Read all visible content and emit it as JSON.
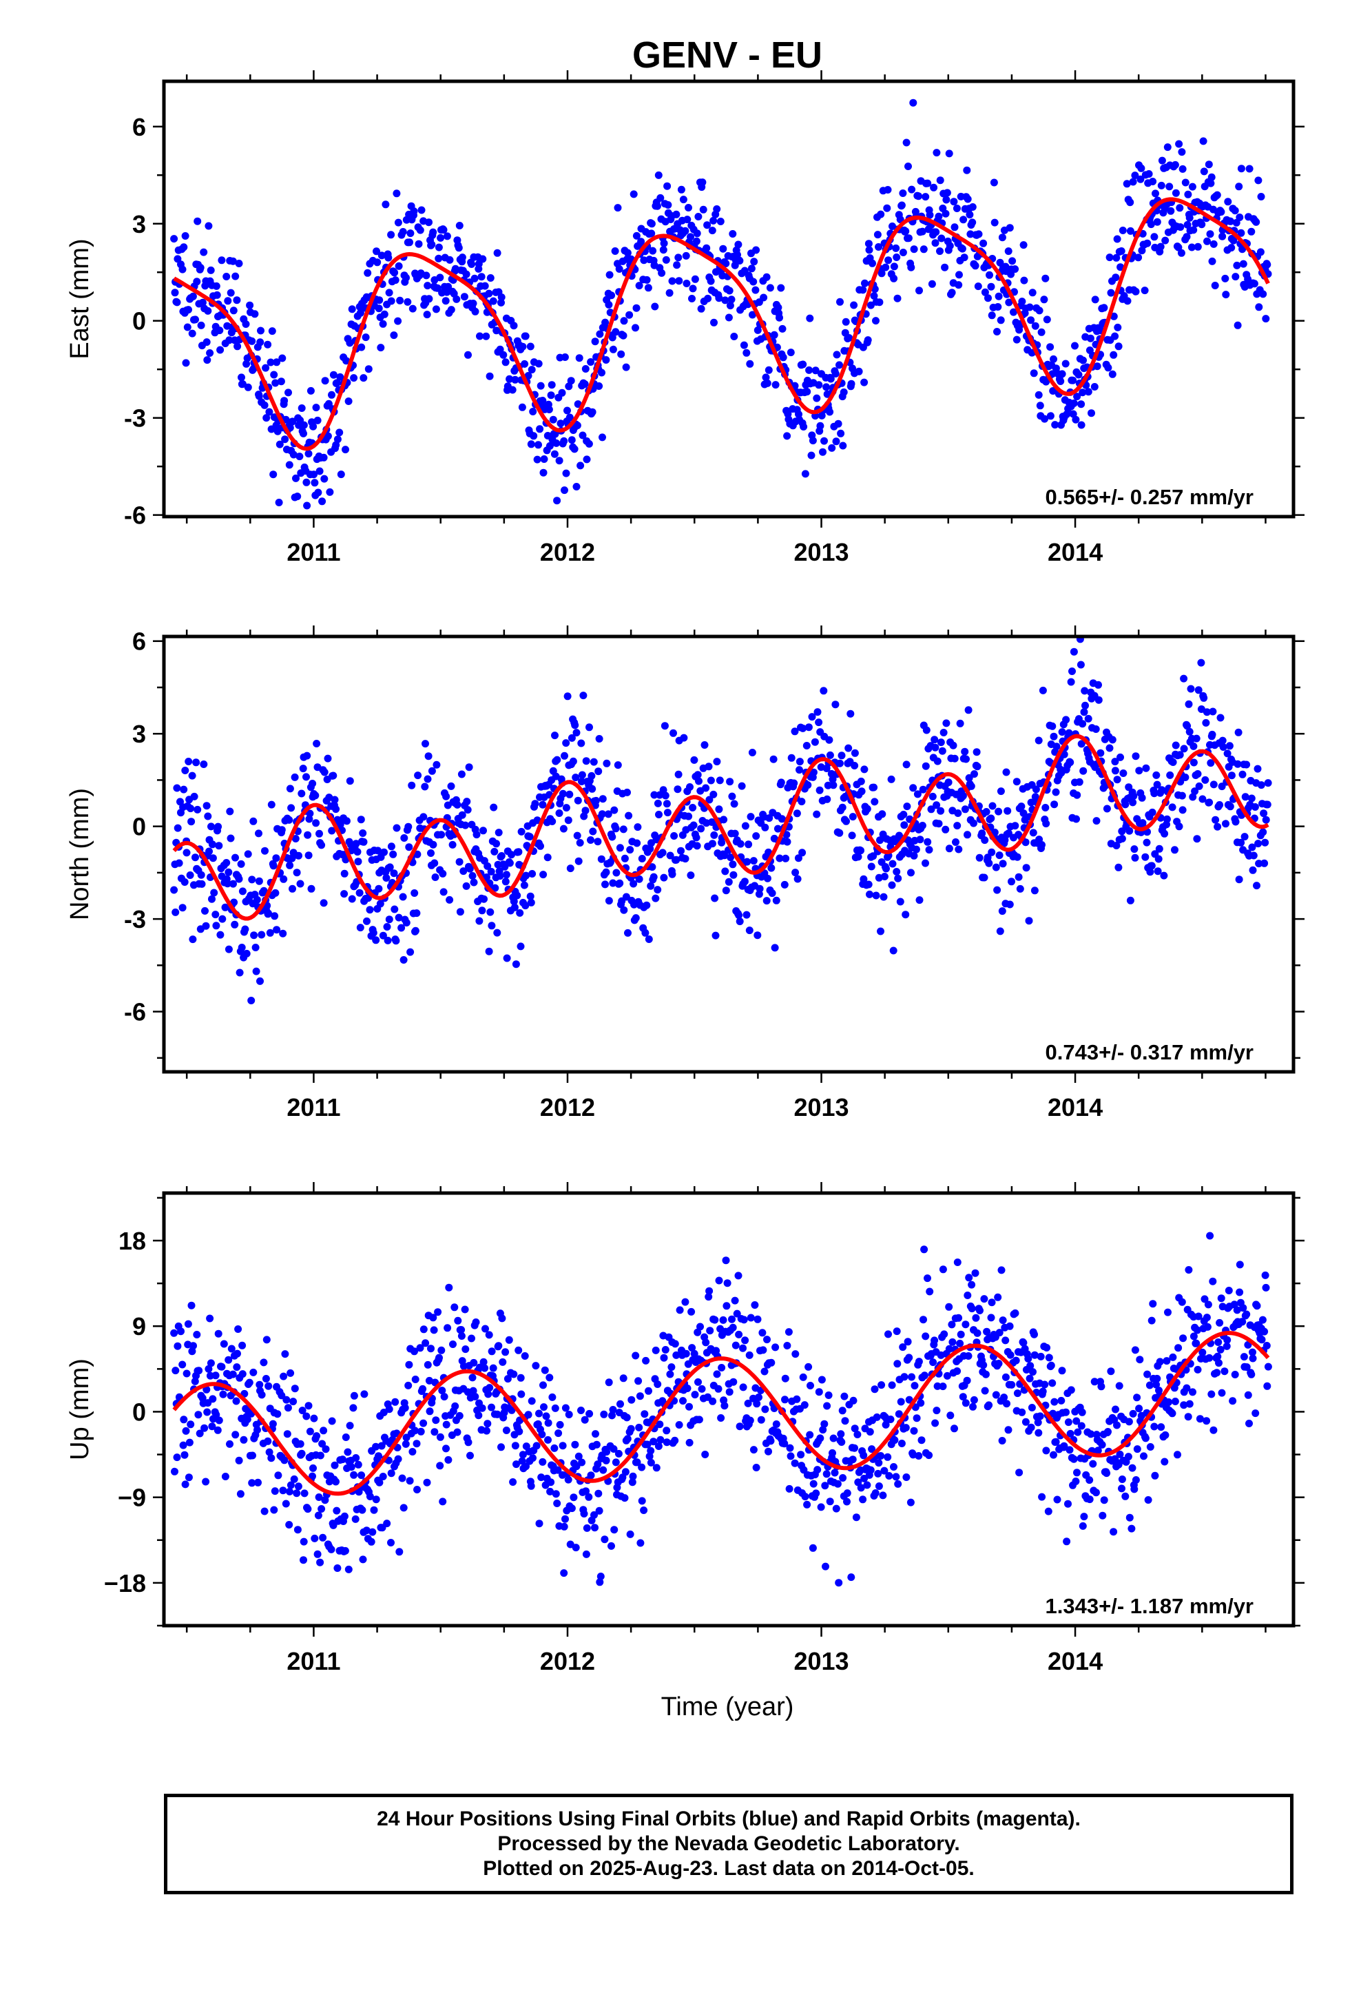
{
  "title": "GENV - EU",
  "xlabel": "Time (year)",
  "footer": {
    "line1": "24 Hour Positions Using Final Orbits (blue) and Rapid Orbits (magenta).",
    "line2": "Processed by the Nevada Geodetic Laboratory.",
    "line3": "Plotted on 2025-Aug-23. Last data on 2014-Oct-05."
  },
  "colors": {
    "points": "#0000ff",
    "fit": "#ff0000",
    "frame": "#000000"
  },
  "chart_data": [
    {
      "type": "scatter",
      "panel": "east",
      "ylabel": "East (mm)",
      "xlim": [
        2010.41,
        2014.86
      ],
      "ylim": [
        -6.05,
        7.4
      ],
      "xticks": [
        2011,
        2012,
        2013,
        2014
      ],
      "xticklabels": [
        "2011",
        "2012",
        "2013",
        "2014"
      ],
      "yticks": [
        -6,
        -3,
        0,
        3,
        6
      ],
      "yticklabels": [
        "-6",
        "-3",
        "0",
        "3",
        "6"
      ],
      "rate_text": "0.565+/- 0.257 mm/yr",
      "series": [
        {
          "role": "points",
          "x_start": 2010.45,
          "x_end": 2014.76,
          "count": 1450,
          "scatter_sd": 0.95,
          "seed": 11
        },
        {
          "role": "fit",
          "x_start": 2010.45,
          "x_end": 2014.76
        }
      ],
      "fit_model": {
        "t0": 2012.6,
        "offset": 0.3,
        "rate": 0.565,
        "annual_amp": 2.75,
        "annual_peak": 2014.45,
        "semiannual_amp": 0.65,
        "semiannual_peak": 2014.25
      }
    },
    {
      "type": "scatter",
      "panel": "north",
      "ylabel": "North (mm)",
      "xlim": [
        2010.41,
        2014.86
      ],
      "ylim": [
        -7.95,
        6.15
      ],
      "xticks": [
        2011,
        2012,
        2013,
        2014
      ],
      "xticklabels": [
        "2011",
        "2012",
        "2013",
        "2014"
      ],
      "yticks": [
        -6,
        -3,
        0,
        3,
        6
      ],
      "yticklabels": [
        "-6",
        "-3",
        "0",
        "3",
        "6"
      ],
      "rate_text": "0.743+/- 0.317 mm/yr",
      "series": [
        {
          "role": "points",
          "x_start": 2010.45,
          "x_end": 2014.76,
          "count": 1450,
          "scatter_sd": 1.2,
          "seed": 23
        },
        {
          "role": "fit",
          "x_start": 2010.45,
          "x_end": 2014.76
        }
      ],
      "fit_model": {
        "t0": 2012.6,
        "offset": 0.0,
        "rate": 0.743,
        "annual_amp": 0.45,
        "annual_peak": 2014.05,
        "semiannual_amp": 1.45,
        "semiannual_peak": 2014.0
      }
    },
    {
      "type": "scatter",
      "panel": "up",
      "ylabel": "Up (mm)",
      "xlim": [
        2010.41,
        2014.86
      ],
      "ylim": [
        -22.5,
        23.0
      ],
      "xticks": [
        2011,
        2012,
        2013,
        2014
      ],
      "xticklabels": [
        "2011",
        "2012",
        "2013",
        "2014"
      ],
      "yticks": [
        -18,
        -9,
        0,
        9,
        18
      ],
      "yticklabels": [
        "−18",
        "−9",
        "0",
        "9",
        "18"
      ],
      "rate_text": "1.343+/- 1.187 mm/yr",
      "series": [
        {
          "role": "points",
          "x_start": 2010.45,
          "x_end": 2014.76,
          "count": 1450,
          "scatter_sd": 4.3,
          "seed": 37
        },
        {
          "role": "fit",
          "x_start": 2010.45,
          "x_end": 2014.76
        }
      ],
      "fit_model": {
        "t0": 2012.6,
        "offset": -0.5,
        "rate": 1.343,
        "annual_amp": 6.1,
        "annual_peak": 2014.6,
        "semiannual_amp": 0.0,
        "semiannual_peak": 2014.0
      }
    }
  ]
}
